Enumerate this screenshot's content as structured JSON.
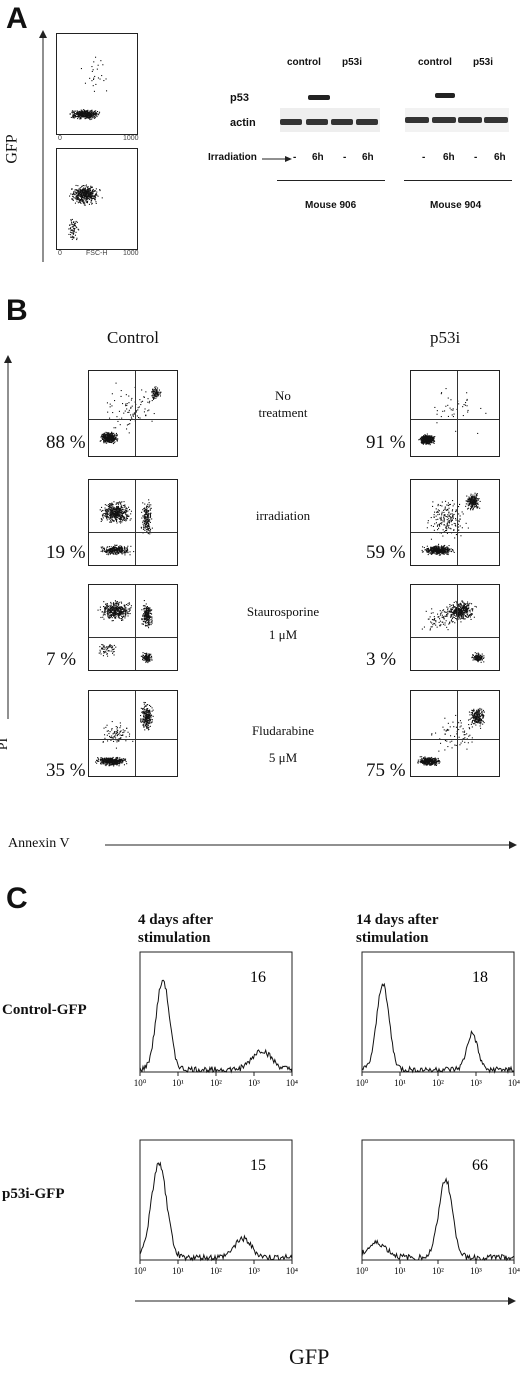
{
  "panel_a": {
    "letter": "A",
    "y_axis_label": "GFP",
    "x_axis_label": "FSC-H",
    "tick_zero": "0",
    "tick_max": "1000",
    "blot": {
      "columns_left": [
        "control",
        "p53i"
      ],
      "columns_right": [
        "control",
        "p53i"
      ],
      "row_labels": [
        "p53",
        "actin"
      ],
      "irradiation_label": "Irradiation",
      "lanes": [
        "-",
        "6h",
        "-",
        "6h",
        "-",
        "6h",
        "-",
        "6h"
      ],
      "mouse_left": "Mouse 906",
      "mouse_right": "Mouse 904"
    }
  },
  "panel_b": {
    "letter": "B",
    "col_control": "Control",
    "col_p53i": "p53i",
    "y_axis_label": "PI",
    "x_axis_label": "Annexin V",
    "rows": [
      {
        "treatment_line1": "No",
        "treatment_line2": "treatment",
        "control_pct": "88 %",
        "p53i_pct": "91 %"
      },
      {
        "treatment_line1": "irradiation",
        "treatment_line2": "",
        "control_pct": "19 %",
        "p53i_pct": "59 %"
      },
      {
        "treatment_line1": "Staurosporine",
        "treatment_line2": "1 μM",
        "control_pct": "7 %",
        "p53i_pct": "3 %"
      },
      {
        "treatment_line1": "Fludarabine",
        "treatment_line2": "5 μM",
        "control_pct": "35 %",
        "p53i_pct": "75 %"
      }
    ]
  },
  "panel_c": {
    "letter": "C",
    "col_left_line1": "4 days after",
    "col_left_line2": "stimulation",
    "col_right_line1": "14 days after",
    "col_right_line2": "stimulation",
    "row_top": "Control-GFP",
    "row_bottom": "p53i-GFP",
    "x_axis_label": "GFP",
    "chart_data": [
      {
        "type": "area",
        "title": "Control-GFP, 4 days after stimulation",
        "value_label": "16",
        "xscale": "log",
        "xlim": [
          1,
          10000
        ],
        "ticks": [
          "10⁰",
          "10¹",
          "10²",
          "10³",
          "10⁴"
        ]
      },
      {
        "type": "area",
        "title": "Control-GFP, 14 days after stimulation",
        "value_label": "18",
        "xscale": "log",
        "xlim": [
          1,
          10000
        ],
        "ticks": [
          "10⁰",
          "10¹",
          "10²",
          "10³",
          "10⁴"
        ]
      },
      {
        "type": "area",
        "title": "p53i-GFP, 4 days after stimulation",
        "value_label": "15",
        "xscale": "log",
        "xlim": [
          1,
          10000
        ],
        "ticks": [
          "10⁰",
          "10¹",
          "10²",
          "10³",
          "10⁴"
        ]
      },
      {
        "type": "area",
        "title": "p53i-GFP, 14 days after stimulation",
        "value_label": "66",
        "xscale": "log",
        "xlim": [
          1,
          10000
        ],
        "ticks": [
          "10⁰",
          "10¹",
          "10²",
          "10³",
          "10⁴"
        ]
      }
    ]
  }
}
